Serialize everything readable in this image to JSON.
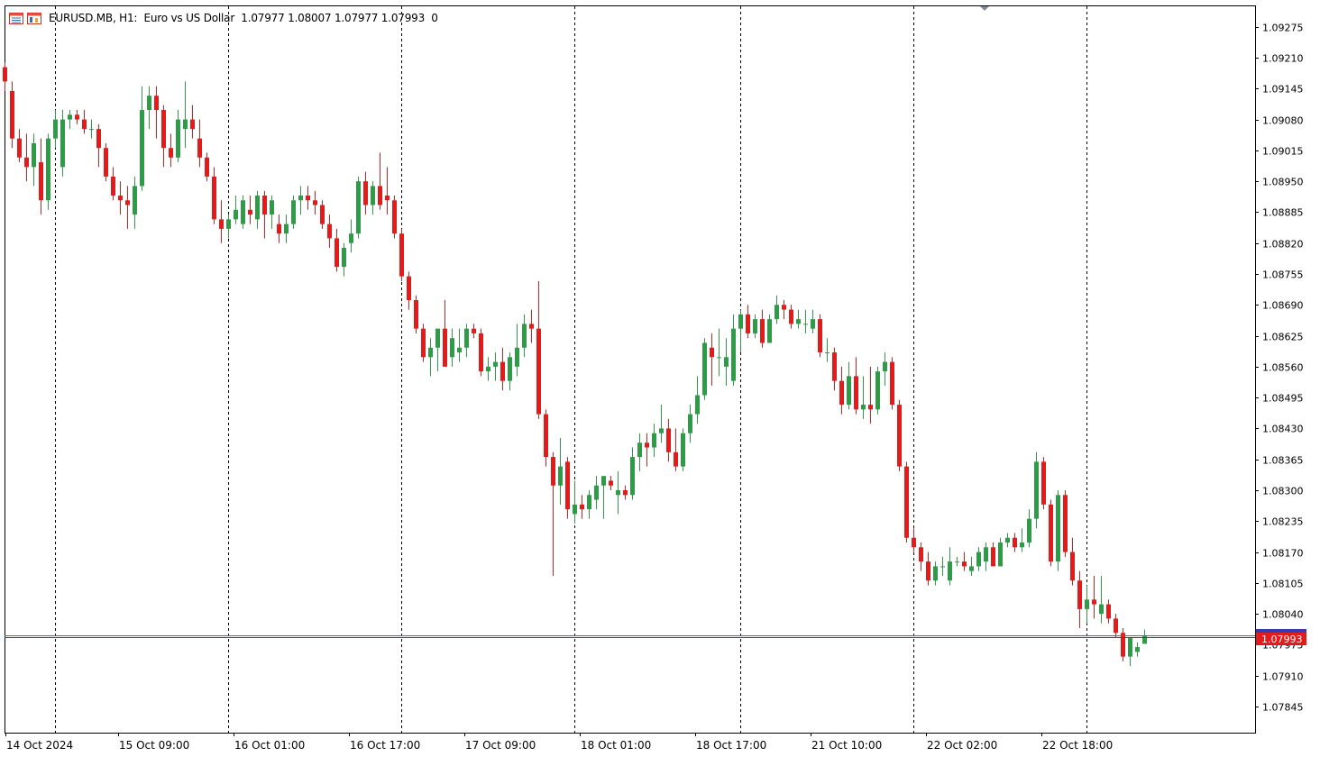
{
  "header": {
    "symbol_label": "EURUSD.MB, H1:",
    "description": "Euro vs US Dollar",
    "ohlc": "1.07977 1.08007 1.07977 1.07993",
    "extra": "0"
  },
  "colors": {
    "bull": "#2e9b46",
    "bear": "#e31b1b",
    "grid": "#000000",
    "price_label_bg": "#e31b1b",
    "bid_line": "#3a3aa8",
    "ask_line": "#d43c3c"
  },
  "chart_data": {
    "type": "candlestick",
    "symbol": "EURUSD.MB",
    "timeframe": "H1",
    "current_price_label": "1.07993",
    "ylim": [
      1.0779,
      1.0932
    ],
    "y_ticks": [
      "1.09275",
      "1.09210",
      "1.09145",
      "1.09080",
      "1.09015",
      "1.08950",
      "1.08885",
      "1.08820",
      "1.08755",
      "1.08690",
      "1.08625",
      "1.08560",
      "1.08495",
      "1.08430",
      "1.08365",
      "1.08300",
      "1.08235",
      "1.08170",
      "1.08105",
      "1.08040",
      "1.07975",
      "1.07910",
      "1.07845"
    ],
    "x_labels": [
      "14 Oct 2024",
      "15 Oct 09:00",
      "16 Oct 01:00",
      "16 Oct 17:00",
      "17 Oct 09:00",
      "18 Oct 01:00",
      "18 Oct 17:00",
      "21 Oct 10:00",
      "22 Oct 02:00",
      "22 Oct 18:00"
    ],
    "session_separators": [
      "14 Oct",
      "15 Oct",
      "16 Oct",
      "17 Oct",
      "18 Oct",
      "18 Oct",
      "21 Oct",
      "22 Oct",
      "22 Oct"
    ],
    "candles": [
      [
        1.0919,
        1.092,
        1.0914,
        1.0916
      ],
      [
        1.0914,
        1.0916,
        1.0902,
        1.0904
      ],
      [
        1.0904,
        1.0906,
        1.0899,
        1.09
      ],
      [
        1.09,
        1.0905,
        1.0895,
        1.0898
      ],
      [
        1.0898,
        1.0905,
        1.0894,
        1.0903
      ],
      [
        1.0899,
        1.0904,
        1.0888,
        1.0891
      ],
      [
        1.0891,
        1.0905,
        1.0889,
        1.0904
      ],
      [
        1.0904,
        1.091,
        1.0902,
        1.0908
      ],
      [
        1.0898,
        1.091,
        1.0896,
        1.0908
      ],
      [
        1.0908,
        1.091,
        1.0906,
        1.0909
      ],
      [
        1.0909,
        1.091,
        1.0907,
        1.0908
      ],
      [
        1.0908,
        1.091,
        1.0905,
        1.0906
      ],
      [
        1.0906,
        1.0908,
        1.0904,
        1.0906
      ],
      [
        1.0906,
        1.0907,
        1.0898,
        1.0902
      ],
      [
        1.0902,
        1.0903,
        1.0895,
        1.0896
      ],
      [
        1.0896,
        1.0898,
        1.0891,
        1.0892
      ],
      [
        1.0892,
        1.0895,
        1.0888,
        1.0891
      ],
      [
        1.0891,
        1.0894,
        1.0885,
        1.089
      ],
      [
        1.0888,
        1.0896,
        1.0885,
        1.0894
      ],
      [
        1.0894,
        1.0915,
        1.0893,
        1.091
      ],
      [
        1.091,
        1.0915,
        1.0906,
        1.0913
      ],
      [
        1.0913,
        1.0915,
        1.0904,
        1.091
      ],
      [
        1.091,
        1.0911,
        1.0898,
        1.0902
      ],
      [
        1.0902,
        1.0905,
        1.0898,
        1.09
      ],
      [
        1.09,
        1.091,
        1.0899,
        1.0908
      ],
      [
        1.0906,
        1.0916,
        1.0902,
        1.0908
      ],
      [
        1.0908,
        1.0911,
        1.0904,
        1.0906
      ],
      [
        1.0904,
        1.0908,
        1.0898,
        1.09
      ],
      [
        1.09,
        1.0901,
        1.0895,
        1.0896
      ],
      [
        1.0896,
        1.0898,
        1.0886,
        1.0887
      ],
      [
        1.0887,
        1.0891,
        1.0882,
        1.0885
      ],
      [
        1.0885,
        1.0888,
        1.0883,
        1.0887
      ],
      [
        1.0887,
        1.0892,
        1.0886,
        1.0889
      ],
      [
        1.0886,
        1.0892,
        1.0885,
        1.0891
      ],
      [
        1.0889,
        1.0892,
        1.0886,
        1.0888
      ],
      [
        1.0887,
        1.0893,
        1.0885,
        1.0892
      ],
      [
        1.0892,
        1.0893,
        1.0883,
        1.0888
      ],
      [
        1.0888,
        1.0892,
        1.0885,
        1.0891
      ],
      [
        1.0886,
        1.0888,
        1.0882,
        1.0884
      ],
      [
        1.0884,
        1.0888,
        1.0882,
        1.0886
      ],
      [
        1.0886,
        1.0892,
        1.0885,
        1.0891
      ],
      [
        1.0891,
        1.0894,
        1.0888,
        1.0892
      ],
      [
        1.0892,
        1.0894,
        1.0889,
        1.0891
      ],
      [
        1.0891,
        1.0893,
        1.0888,
        1.089
      ],
      [
        1.089,
        1.0891,
        1.0885,
        1.0886
      ],
      [
        1.0886,
        1.0888,
        1.0881,
        1.0883
      ],
      [
        1.0883,
        1.0885,
        1.0876,
        1.0877
      ],
      [
        1.0877,
        1.0882,
        1.0875,
        1.0881
      ],
      [
        1.0882,
        1.0887,
        1.088,
        1.0884
      ],
      [
        1.0884,
        1.0896,
        1.0883,
        1.0895
      ],
      [
        1.0895,
        1.0897,
        1.0888,
        1.089
      ],
      [
        1.089,
        1.0895,
        1.0888,
        1.0894
      ],
      [
        1.0894,
        1.0901,
        1.0889,
        1.089
      ],
      [
        1.0892,
        1.0898,
        1.0888,
        1.0891
      ],
      [
        1.0891,
        1.0892,
        1.0883,
        1.0884
      ],
      [
        1.0884,
        1.0885,
        1.0874,
        1.0875
      ],
      [
        1.0875,
        1.0876,
        1.0868,
        1.087
      ],
      [
        1.087,
        1.0871,
        1.0863,
        1.0864
      ],
      [
        1.0864,
        1.0865,
        1.0857,
        1.0858
      ],
      [
        1.0858,
        1.0862,
        1.0854,
        1.086
      ],
      [
        1.086,
        1.0864,
        1.0855,
        1.0864
      ],
      [
        1.0864,
        1.087,
        1.0856,
        1.0856
      ],
      [
        1.0858,
        1.0864,
        1.0856,
        1.0862
      ],
      [
        1.0859,
        1.0864,
        1.0857,
        1.086
      ],
      [
        1.086,
        1.0865,
        1.0858,
        1.0864
      ],
      [
        1.0864,
        1.0865,
        1.0862,
        1.0863
      ],
      [
        1.0863,
        1.0864,
        1.0854,
        1.0855
      ],
      [
        1.0855,
        1.0858,
        1.0853,
        1.0856
      ],
      [
        1.0856,
        1.0859,
        1.0853,
        1.0857
      ],
      [
        1.0857,
        1.086,
        1.0851,
        1.0853
      ],
      [
        1.0853,
        1.0859,
        1.0851,
        1.0858
      ],
      [
        1.0856,
        1.0865,
        1.0854,
        1.086
      ],
      [
        1.086,
        1.0867,
        1.0858,
        1.0865
      ],
      [
        1.0865,
        1.0868,
        1.0861,
        1.0864
      ],
      [
        1.0864,
        1.0874,
        1.0845,
        1.0846
      ],
      [
        1.0846,
        1.0847,
        1.0835,
        1.0837
      ],
      [
        1.0837,
        1.0838,
        1.0812,
        1.0831
      ],
      [
        1.0831,
        1.0841,
        1.0827,
        1.0835
      ],
      [
        1.0836,
        1.0837,
        1.0824,
        1.0826
      ],
      [
        1.0825,
        1.0832,
        1.0823,
        1.0827
      ],
      [
        1.0827,
        1.0829,
        1.0824,
        1.0826
      ],
      [
        1.0826,
        1.083,
        1.0824,
        1.0829
      ],
      [
        1.0828,
        1.0833,
        1.0826,
        1.0831
      ],
      [
        1.0831,
        1.0833,
        1.0824,
        1.0833
      ],
      [
        1.0832,
        1.0833,
        1.083,
        1.0831
      ],
      [
        1.0829,
        1.0834,
        1.0825,
        1.083
      ],
      [
        1.083,
        1.0831,
        1.0828,
        1.0829
      ],
      [
        1.0829,
        1.0839,
        1.0828,
        1.0837
      ],
      [
        1.0837,
        1.0842,
        1.0834,
        1.084
      ],
      [
        1.084,
        1.0842,
        1.0835,
        1.0839
      ],
      [
        1.0839,
        1.0844,
        1.0837,
        1.0842
      ],
      [
        1.0842,
        1.0848,
        1.084,
        1.0843
      ],
      [
        1.0843,
        1.0845,
        1.0836,
        1.0838
      ],
      [
        1.0838,
        1.0843,
        1.0834,
        1.0835
      ],
      [
        1.0835,
        1.0843,
        1.0834,
        1.0842
      ],
      [
        1.0842,
        1.0848,
        1.084,
        1.0846
      ],
      [
        1.0846,
        1.0854,
        1.0844,
        1.085
      ],
      [
        1.085,
        1.0862,
        1.0849,
        1.0861
      ],
      [
        1.086,
        1.0863,
        1.0852,
        1.0858
      ],
      [
        1.0858,
        1.0864,
        1.0854,
        1.0858
      ],
      [
        1.0856,
        1.0862,
        1.0852,
        1.0858
      ],
      [
        1.0853,
        1.0867,
        1.0852,
        1.0864
      ],
      [
        1.0864,
        1.0868,
        1.0859,
        1.0867
      ],
      [
        1.0867,
        1.0869,
        1.0862,
        1.0863
      ],
      [
        1.0863,
        1.0867,
        1.0862,
        1.0866
      ],
      [
        1.0866,
        1.0868,
        1.086,
        1.0861
      ],
      [
        1.0861,
        1.0867,
        1.0861,
        1.0866
      ],
      [
        1.0866,
        1.0871,
        1.0865,
        1.0869
      ],
      [
        1.0869,
        1.087,
        1.0866,
        1.0868
      ],
      [
        1.0868,
        1.0869,
        1.0864,
        1.0865
      ],
      [
        1.0865,
        1.0868,
        1.0864,
        1.0866
      ],
      [
        1.0865,
        1.0868,
        1.0863,
        1.0865
      ],
      [
        1.0864,
        1.0868,
        1.0863,
        1.0866
      ],
      [
        1.0866,
        1.0867,
        1.0858,
        1.0859
      ],
      [
        1.0859,
        1.0862,
        1.0857,
        1.0859
      ],
      [
        1.0859,
        1.086,
        1.0851,
        1.0853
      ],
      [
        1.0853,
        1.0856,
        1.0846,
        1.0848
      ],
      [
        1.0848,
        1.0857,
        1.0847,
        1.0854
      ],
      [
        1.0854,
        1.0858,
        1.0846,
        1.0847
      ],
      [
        1.0847,
        1.0854,
        1.0845,
        1.0848
      ],
      [
        1.0848,
        1.0856,
        1.0844,
        1.0847
      ],
      [
        1.0847,
        1.0856,
        1.0846,
        1.0855
      ],
      [
        1.0855,
        1.0859,
        1.0852,
        1.0857
      ],
      [
        1.0857,
        1.0858,
        1.0847,
        1.0848
      ],
      [
        1.0848,
        1.0849,
        1.0834,
        1.0835
      ],
      [
        1.0835,
        1.0836,
        1.0819,
        1.082
      ],
      [
        1.082,
        1.0822,
        1.0817,
        1.0818
      ],
      [
        1.0818,
        1.0819,
        1.0813,
        1.0815
      ],
      [
        1.0815,
        1.0817,
        1.081,
        1.0811
      ],
      [
        1.0811,
        1.0815,
        1.081,
        1.0814
      ],
      [
        1.0814,
        1.0816,
        1.0812,
        1.0814
      ],
      [
        1.0811,
        1.0818,
        1.081,
        1.0815
      ],
      [
        1.0815,
        1.0816,
        1.0814,
        1.0815
      ],
      [
        1.0815,
        1.0817,
        1.0813,
        1.0814
      ],
      [
        1.0813,
        1.0816,
        1.0812,
        1.0814
      ],
      [
        1.0814,
        1.0818,
        1.0813,
        1.0817
      ],
      [
        1.0815,
        1.0819,
        1.0813,
        1.0818
      ],
      [
        1.0818,
        1.0819,
        1.0814,
        1.0814
      ],
      [
        1.0814,
        1.082,
        1.0814,
        1.0819
      ],
      [
        1.0819,
        1.0821,
        1.0818,
        1.082
      ],
      [
        1.082,
        1.0821,
        1.0817,
        1.0818
      ],
      [
        1.0818,
        1.0822,
        1.0817,
        1.0819
      ],
      [
        1.0819,
        1.0826,
        1.0818,
        1.0824
      ],
      [
        1.0824,
        1.0838,
        1.0822,
        1.0836
      ],
      [
        1.0836,
        1.0837,
        1.0826,
        1.0827
      ],
      [
        1.0827,
        1.0828,
        1.0814,
        1.0815
      ],
      [
        1.0815,
        1.083,
        1.0813,
        1.0829
      ],
      [
        1.0829,
        1.083,
        1.0816,
        1.0817
      ],
      [
        1.0817,
        1.082,
        1.081,
        1.0811
      ],
      [
        1.0811,
        1.0813,
        1.0801,
        1.0805
      ],
      [
        1.0805,
        1.081,
        1.0802,
        1.0807
      ],
      [
        1.0807,
        1.0812,
        1.0803,
        1.0806
      ],
      [
        1.0804,
        1.0812,
        1.0802,
        1.0806
      ],
      [
        1.0806,
        1.0807,
        1.0802,
        1.0803
      ],
      [
        1.0803,
        1.0804,
        1.0799,
        1.08
      ],
      [
        1.08,
        1.0801,
        1.0794,
        1.0795
      ],
      [
        1.0795,
        1.0799,
        1.0793,
        1.0799
      ],
      [
        1.0796,
        1.0798,
        1.0795,
        1.0797
      ],
      [
        1.07977,
        1.08007,
        1.07977,
        1.07993
      ]
    ]
  }
}
